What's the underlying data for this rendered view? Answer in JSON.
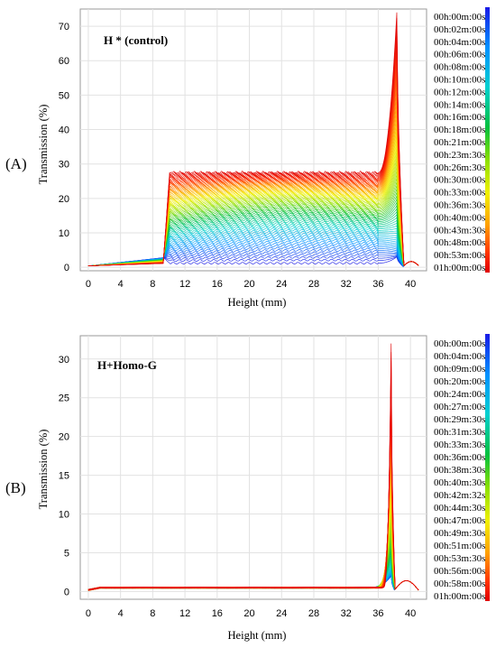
{
  "chart_data": [
    {
      "panel_label": "(A)",
      "type": "line",
      "title": "H * (control)",
      "xlabel": "Height (mm)",
      "ylabel": "Transmission (%)",
      "xlim": [
        -1,
        42
      ],
      "ylim": [
        -1,
        75
      ],
      "xticks": [
        "0",
        "4",
        "8",
        "12",
        "16",
        "20",
        "24",
        "28",
        "32",
        "36",
        "40"
      ],
      "yticks": [
        "0",
        "10",
        "20",
        "30",
        "40",
        "50",
        "60",
        "70"
      ],
      "grid": true,
      "legend_position": "right",
      "legend": [
        "00h:00m:00s",
        "00h:02m:00s",
        "00h:04m:00s",
        "00h:06m:00s",
        "00h:08m:00s",
        "00h:10m:00s",
        "00h:12m:00s",
        "00h:14m:00s",
        "00h:16m:00s",
        "00h:18m:00s",
        "00h:21m:00s",
        "00h:23m:30s",
        "00h:26m:30s",
        "00h:30m:00s",
        "00h:33m:00s",
        "00h:36m:30s",
        "00h:40m:00s",
        "00h:43m:30s",
        "00h:48m:00s",
        "00h:53m:00s",
        "01h:00m:00s"
      ],
      "series_shape": {
        "x_start": 0,
        "x_rise": 9.7,
        "x_peak": 38.3,
        "x_end": 41,
        "plateau_first": 1.2,
        "plateau_last": 27.5,
        "peak_last": 74,
        "baseline_left_max": 2.5
      }
    },
    {
      "panel_label": "(B)",
      "type": "line",
      "title": "H+Homo-G",
      "xlabel": "Height (mm)",
      "ylabel": "Transmission (%)",
      "xlim": [
        -1,
        42
      ],
      "ylim": [
        -1,
        33
      ],
      "xticks": [
        "0",
        "4",
        "8",
        "12",
        "16",
        "20",
        "24",
        "28",
        "32",
        "36",
        "40"
      ],
      "yticks": [
        "0",
        "5",
        "10",
        "15",
        "20",
        "25",
        "30"
      ],
      "grid": true,
      "legend_position": "right",
      "legend": [
        "00h:00m:00s",
        "00h:04m:00s",
        "00h:09m:00s",
        "00h:20m:00s",
        "00h:24m:00s",
        "00h:27m:00s",
        "00h:29m:30s",
        "00h:31m:30s",
        "00h:33m:30s",
        "00h:36m:00s",
        "00h:38m:30s",
        "00h:40m:30s",
        "00h:42m:32s",
        "00h:44m:30s",
        "00h:47m:00s",
        "00h:49m:30s",
        "00h:51m:00s",
        "00h:53m:30s",
        "00h:56m:00s",
        "00h:58m:00s",
        "01h:00m:00s"
      ],
      "series_shape": {
        "x_start": 0,
        "x_peak": 37.6,
        "x_end": 41,
        "baseline": 0.5,
        "peak_last": 32
      }
    }
  ],
  "colorbar": {
    "stops": [
      "#1a1ae6",
      "#0090ff",
      "#00d0d0",
      "#00c040",
      "#90e000",
      "#f0f000",
      "#ffa000",
      "#ff3000",
      "#e00000"
    ]
  }
}
